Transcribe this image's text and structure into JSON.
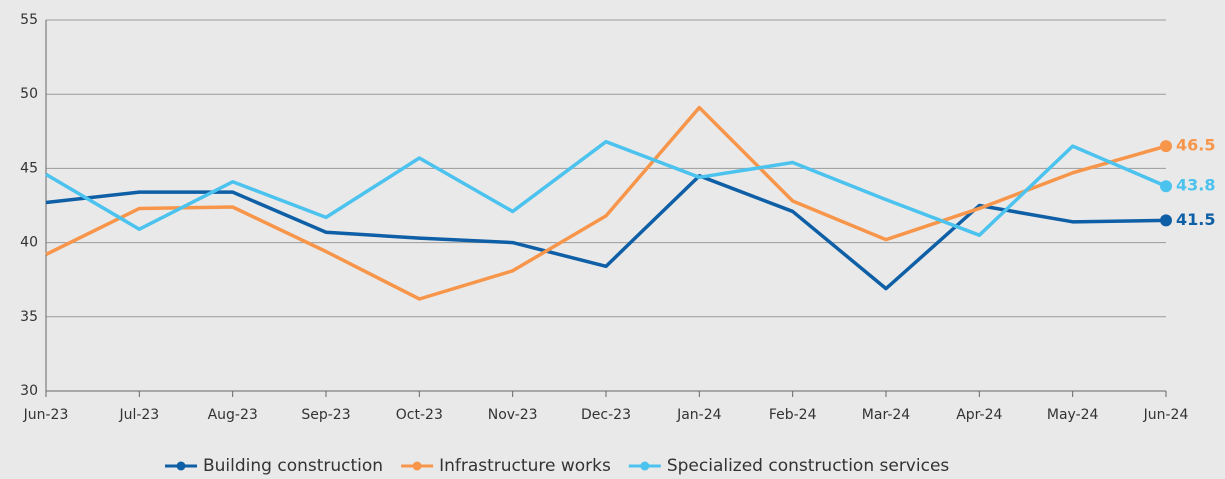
{
  "chart_data": {
    "type": "line",
    "categories": [
      "Jun-23",
      "Jul-23",
      "Aug-23",
      "Sep-23",
      "Oct-23",
      "Nov-23",
      "Dec-23",
      "Jan-24",
      "Feb-24",
      "Mar-24",
      "Apr-24",
      "May-24",
      "Jun-24"
    ],
    "series": [
      {
        "name": "Building construction",
        "color": "#0f5fa6",
        "values": [
          42.7,
          43.4,
          43.4,
          40.7,
          40.3,
          40.0,
          38.4,
          44.5,
          42.1,
          36.9,
          42.5,
          41.4,
          41.5
        ]
      },
      {
        "name": "Infrastructure works",
        "color": "#f7964a",
        "values": [
          39.2,
          42.3,
          42.4,
          39.4,
          36.2,
          38.1,
          41.8,
          49.1,
          42.8,
          40.2,
          42.3,
          44.7,
          46.5
        ]
      },
      {
        "name": "Specialized construction services",
        "color": "#4cc3ee",
        "values": [
          44.6,
          40.9,
          44.1,
          41.7,
          45.7,
          42.1,
          46.8,
          44.4,
          45.4,
          42.9,
          40.5,
          46.5,
          43.8
        ]
      }
    ],
    "ylim": [
      30,
      55
    ],
    "yticks": [
      30,
      35,
      40,
      45,
      50,
      55
    ],
    "grid": true,
    "legend": "bottom"
  }
}
